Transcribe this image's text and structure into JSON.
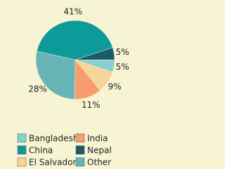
{
  "chart_data": {
    "type": "pie",
    "categories": [
      "Bangladesh",
      "China",
      "El Salvador",
      "India",
      "Nepal",
      "Other"
    ],
    "values": [
      5,
      41,
      9,
      11,
      5,
      28
    ],
    "value_labels": [
      "5%",
      "41%",
      "9%",
      "11%",
      "5%",
      "28%"
    ],
    "colors": [
      "#86d1cf",
      "#0e9a9a",
      "#f6d59c",
      "#f79c6c",
      "#1b5a6b",
      "#67b4b7"
    ]
  }
}
